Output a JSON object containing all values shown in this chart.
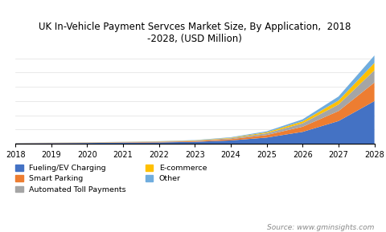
{
  "title": "UK In-Vehicle Payment Servces Market Size, By Application,  2018\n-2028, (USD Million)",
  "years": [
    2018,
    2019,
    2020,
    2021,
    2022,
    2023,
    2024,
    2025,
    2026,
    2027,
    2028
  ],
  "series": {
    "Fueling/EV Charging": [
      2,
      2.5,
      3,
      4,
      5,
      7,
      12,
      22,
      42,
      80,
      150
    ],
    "Smart Parking": [
      0.5,
      0.7,
      1,
      1.3,
      1.8,
      2.5,
      4.5,
      9,
      18,
      35,
      65
    ],
    "Automated Toll Payments": [
      0.3,
      0.4,
      0.6,
      0.8,
      1.1,
      1.6,
      3,
      6,
      12,
      23,
      43
    ],
    "E-commerce": [
      0.2,
      0.3,
      0.4,
      0.5,
      0.7,
      1.0,
      1.8,
      3.5,
      7,
      14,
      26
    ],
    "Other": [
      0.2,
      0.3,
      0.4,
      0.5,
      0.7,
      1.0,
      1.8,
      3.5,
      7,
      14,
      26
    ]
  },
  "colors": {
    "Fueling/EV Charging": "#4472C4",
    "Smart Parking": "#ED7D31",
    "Automated Toll Payments": "#A5A5A5",
    "E-commerce": "#FFC000",
    "Other": "#70ADDE"
  },
  "legend_order": [
    "Fueling/EV Charging",
    "Smart Parking",
    "Automated Toll Payments",
    "E-commerce",
    "Other"
  ],
  "source_text": "Source: www.gminsights.com",
  "background_color": "#ffffff",
  "xlim": [
    2018,
    2028
  ]
}
